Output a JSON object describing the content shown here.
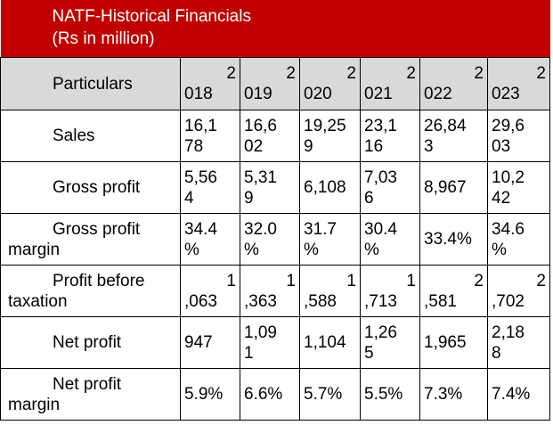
{
  "title": "NATF-Historical Financials",
  "subtitle": "(Rs in million)",
  "header": {
    "particulars": "Particulars",
    "years": [
      {
        "top": "2",
        "bottom": "018"
      },
      {
        "top": "2",
        "bottom": "019"
      },
      {
        "top": "2",
        "bottom": "020"
      },
      {
        "top": "2",
        "bottom": "021"
      },
      {
        "top": "2",
        "bottom": "022"
      },
      {
        "top": "2",
        "bottom": "023"
      }
    ]
  },
  "rows": [
    {
      "label": "Sales",
      "cells": [
        {
          "top": "16,1",
          "bottom": "78"
        },
        {
          "top": "16,6",
          "bottom": "02"
        },
        {
          "top": "19,25",
          "bottom": "9"
        },
        {
          "top": "23,1",
          "bottom": "16"
        },
        {
          "top": "26,84",
          "bottom": "3"
        },
        {
          "top": "29,6",
          "bottom": "03"
        }
      ]
    },
    {
      "label": "Gross profit",
      "cells": [
        {
          "top": "5,56",
          "bottom": "4"
        },
        {
          "top": "5,31",
          "bottom": "9"
        },
        {
          "single": "6,108"
        },
        {
          "top": "7,03",
          "bottom": "6"
        },
        {
          "single": "8,967"
        },
        {
          "top": "10,2",
          "bottom": "42"
        }
      ]
    },
    {
      "label1": "Gross profit",
      "label2": "margin",
      "cells": [
        {
          "top": "34.4",
          "bottom": "%"
        },
        {
          "top": "32.0",
          "bottom": "%"
        },
        {
          "top": "31.7",
          "bottom": "%"
        },
        {
          "top": "30.4",
          "bottom": "%"
        },
        {
          "single": "33.4%"
        },
        {
          "top": "34.6",
          "bottom": "%"
        }
      ]
    },
    {
      "label1": "Profit before",
      "label2": "taxation",
      "cells": [
        {
          "top": "1",
          "bottom": ",063"
        },
        {
          "top": "1",
          "bottom": ",363"
        },
        {
          "top": "1",
          "bottom": ",588"
        },
        {
          "top": "1",
          "bottom": ",713"
        },
        {
          "top": "2",
          "bottom": ",581"
        },
        {
          "top": "2",
          "bottom": ",702"
        }
      ]
    },
    {
      "label": "Net profit",
      "cells": [
        {
          "single": "947"
        },
        {
          "top": "1,09",
          "bottom": "1"
        },
        {
          "single": "1,104"
        },
        {
          "top": "1,26",
          "bottom": "5"
        },
        {
          "single": "1,965"
        },
        {
          "top": "2,18",
          "bottom": "8"
        }
      ]
    },
    {
      "label1": "Net profit",
      "label2": "margin",
      "cells": [
        {
          "single": "5.9%"
        },
        {
          "single": "6.6%"
        },
        {
          "single": "5.7%"
        },
        {
          "single": "5.5%"
        },
        {
          "single": "7.3%"
        },
        {
          "single": "7.4%"
        }
      ]
    }
  ]
}
